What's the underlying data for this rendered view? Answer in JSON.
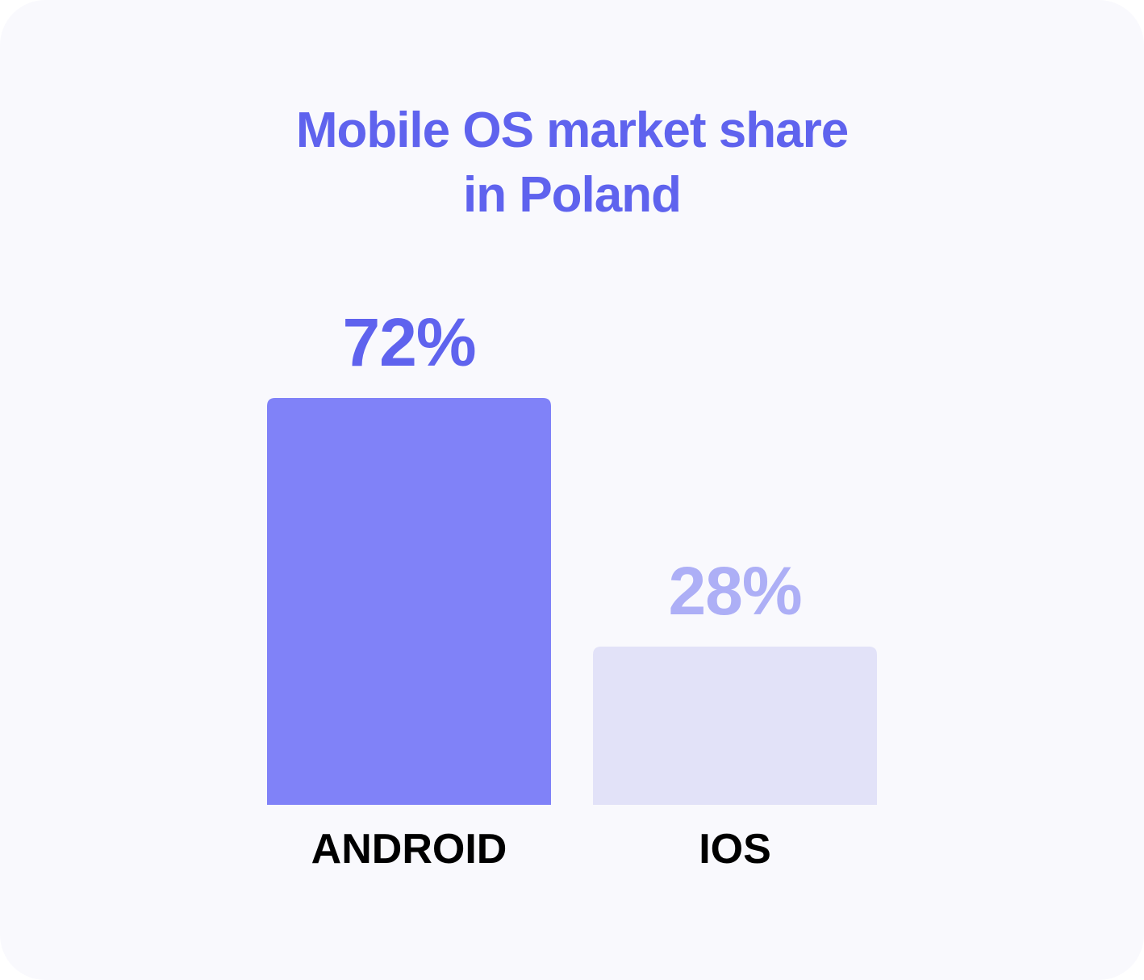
{
  "chart_data": {
    "type": "bar",
    "title": [
      "Mobile OS market share",
      "in Poland"
    ],
    "categories": [
      "ANDROID",
      "IOS"
    ],
    "values": [
      72,
      28
    ],
    "value_labels": [
      "72%",
      "28%"
    ],
    "ylim": [
      0,
      100
    ],
    "grid": false,
    "legend": "none",
    "colors": {
      "title": "#5f63ee",
      "bars": [
        "#8082f8",
        "#e2e2f8"
      ],
      "value_labels": [
        "#5f63ee",
        "#adaff6"
      ],
      "category_labels": "#000000",
      "background": "#f9f9fd"
    }
  }
}
